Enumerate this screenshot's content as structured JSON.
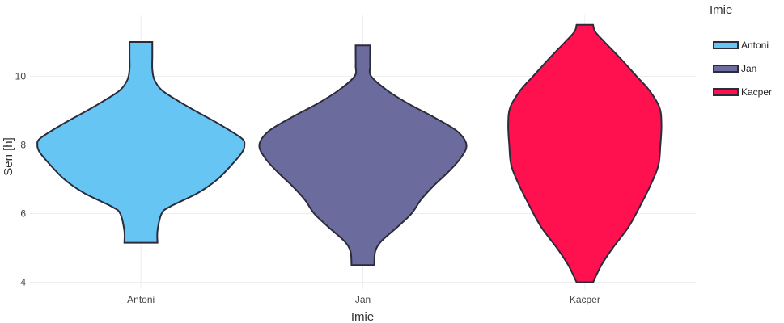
{
  "chart_data": {
    "type": "violin",
    "xlabel": "Imie",
    "ylabel": "Sen [h]",
    "ylim": [
      3.8,
      11.8
    ],
    "yticks": [
      4,
      6,
      8,
      10
    ],
    "categories": [
      "Antoni",
      "Jan",
      "Kacper"
    ],
    "legend": {
      "title": "Imie",
      "placement": "top-right"
    },
    "grid": true,
    "series": [
      {
        "name": "Antoni",
        "color": "#66c5f3",
        "min": 5.15,
        "max": 11.0,
        "profile": [
          [
            5.15,
            0.16
          ],
          [
            5.5,
            0.16
          ],
          [
            6.0,
            0.2
          ],
          [
            6.2,
            0.28
          ],
          [
            6.6,
            0.55
          ],
          [
            7.0,
            0.74
          ],
          [
            7.5,
            0.9
          ],
          [
            7.8,
            0.98
          ],
          [
            8.0,
            1.0
          ],
          [
            8.2,
            0.97
          ],
          [
            8.6,
            0.76
          ],
          [
            9.0,
            0.52
          ],
          [
            9.3,
            0.35
          ],
          [
            9.6,
            0.2
          ],
          [
            9.9,
            0.13
          ],
          [
            10.2,
            0.11
          ],
          [
            10.6,
            0.11
          ],
          [
            11.0,
            0.11
          ]
        ]
      },
      {
        "name": "Jan",
        "color": "#6c6b9e",
        "min": 4.5,
        "max": 10.9,
        "profile": [
          [
            4.5,
            0.11
          ],
          [
            4.9,
            0.12
          ],
          [
            5.2,
            0.18
          ],
          [
            5.6,
            0.33
          ],
          [
            6.0,
            0.47
          ],
          [
            6.4,
            0.56
          ],
          [
            6.8,
            0.68
          ],
          [
            7.2,
            0.82
          ],
          [
            7.6,
            0.94
          ],
          [
            8.0,
            1.0
          ],
          [
            8.4,
            0.91
          ],
          [
            8.8,
            0.69
          ],
          [
            9.2,
            0.44
          ],
          [
            9.6,
            0.23
          ],
          [
            10.0,
            0.08
          ],
          [
            10.3,
            0.07
          ],
          [
            10.6,
            0.07
          ],
          [
            10.9,
            0.07
          ]
        ]
      },
      {
        "name": "Kacper",
        "color": "#ff1150",
        "min": 4.0,
        "max": 11.5,
        "profile": [
          [
            4.0,
            0.08
          ],
          [
            4.5,
            0.16
          ],
          [
            5.0,
            0.27
          ],
          [
            5.6,
            0.42
          ],
          [
            6.2,
            0.53
          ],
          [
            6.8,
            0.63
          ],
          [
            7.4,
            0.71
          ],
          [
            8.0,
            0.73
          ],
          [
            8.6,
            0.74
          ],
          [
            9.1,
            0.72
          ],
          [
            9.6,
            0.62
          ],
          [
            10.0,
            0.5
          ],
          [
            10.5,
            0.35
          ],
          [
            11.0,
            0.19
          ],
          [
            11.3,
            0.1
          ],
          [
            11.5,
            0.08
          ]
        ]
      }
    ]
  }
}
